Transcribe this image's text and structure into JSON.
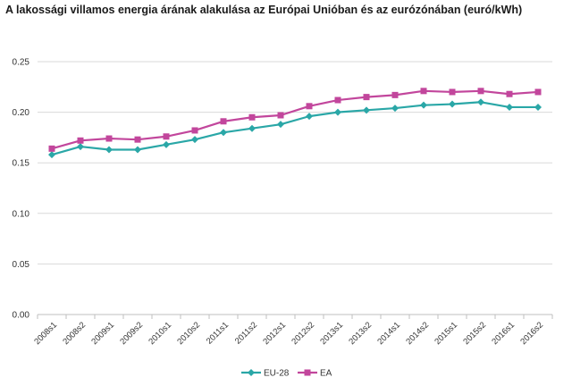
{
  "chart_data": {
    "type": "line",
    "title": "A lakossági villamos energia árának alakulása az Európai Unióban és az eurózónában (euró/kWh)",
    "categories": [
      "2008s1",
      "2008s2",
      "2009s1",
      "2009s2",
      "2010s1",
      "2010s2",
      "2011s1",
      "2011s2",
      "2012s1",
      "2012s2",
      "2013s1",
      "2013s2",
      "2014s1",
      "2014s2",
      "2015s1",
      "2015s2",
      "2016s1",
      "2016s2"
    ],
    "series": [
      {
        "name": "EU-28",
        "color": "#2aa7a7",
        "marker": "diamond",
        "values": [
          0.158,
          0.166,
          0.163,
          0.163,
          0.168,
          0.173,
          0.18,
          0.184,
          0.188,
          0.196,
          0.2,
          0.202,
          0.204,
          0.207,
          0.208,
          0.21,
          0.205,
          0.205
        ]
      },
      {
        "name": "EA",
        "color": "#c2469c",
        "marker": "square",
        "values": [
          0.164,
          0.172,
          0.174,
          0.173,
          0.176,
          0.182,
          0.191,
          0.195,
          0.197,
          0.206,
          0.212,
          0.215,
          0.217,
          0.221,
          0.22,
          0.221,
          0.218,
          0.22
        ]
      }
    ],
    "yticks": [
      "0.00",
      "0.05",
      "0.10",
      "0.15",
      "0.20",
      "0.25"
    ],
    "ylim": [
      0,
      0.25
    ],
    "grid": true,
    "legend": "bottom-center"
  }
}
